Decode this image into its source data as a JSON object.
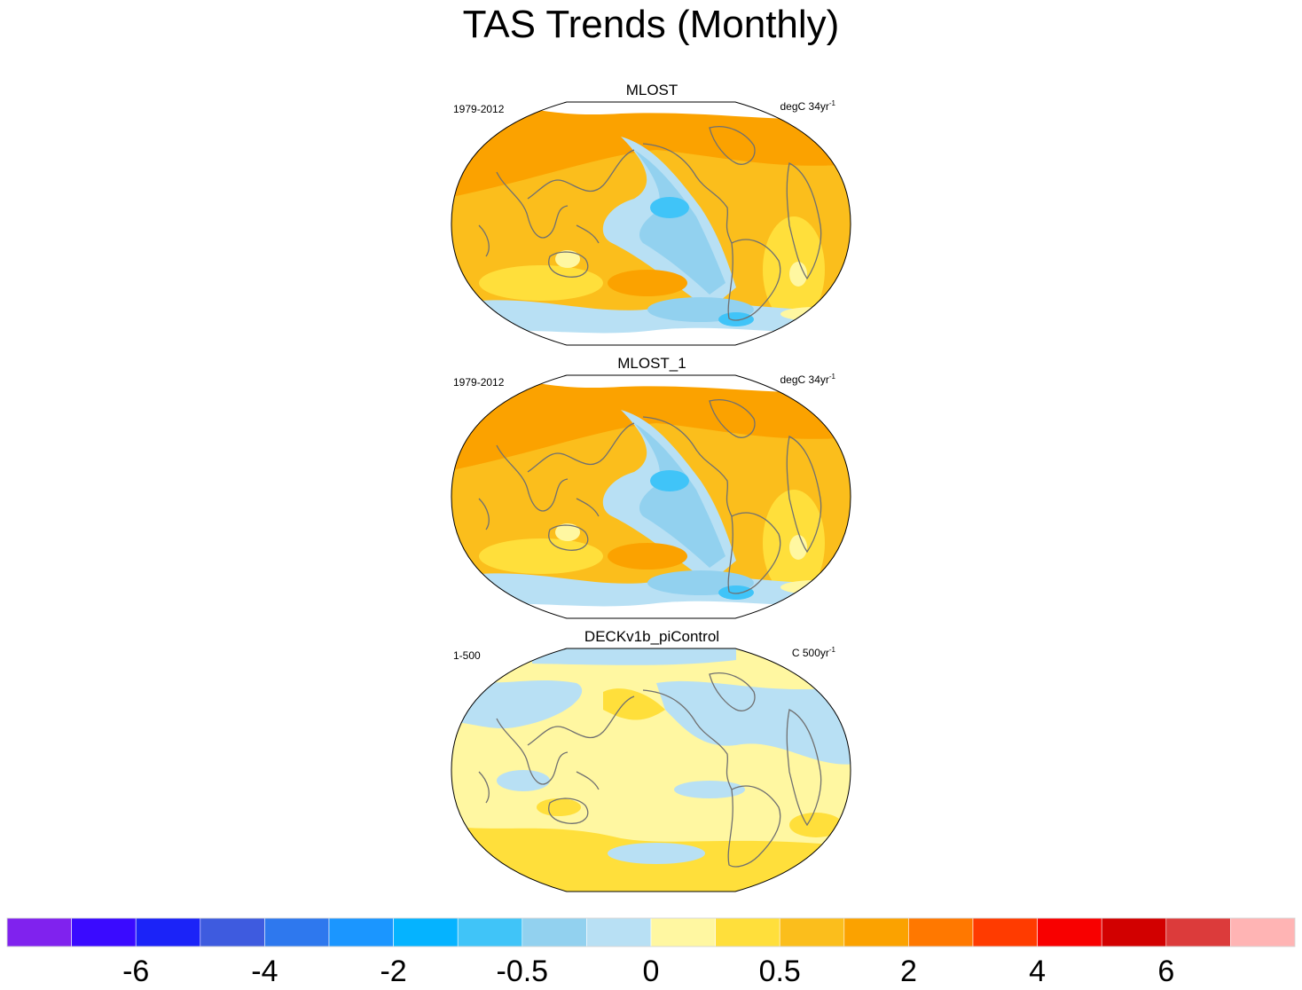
{
  "title": "TAS Trends (Monthly)",
  "panels": [
    {
      "name": "MLOST",
      "period": "1979-2012",
      "units_base": "degC 34yr",
      "units_exp": "-1",
      "pattern": "obs"
    },
    {
      "name": "MLOST_1",
      "period": "1979-2012",
      "units_base": "degC 34yr",
      "units_exp": "-1",
      "pattern": "obs"
    },
    {
      "name": "DECKv1b_piControl",
      "period": "1-500",
      "units_base": "C 500yr",
      "units_exp": "-1",
      "pattern": "control"
    }
  ],
  "chart_data": {
    "type": "heatmap",
    "title": "TAS Trends (Monthly)",
    "projection": "Robinson-like global map",
    "colorbar": {
      "colors": [
        "#8022ee",
        "#3a0aff",
        "#1b23f8",
        "#3e5bdf",
        "#2e78ee",
        "#1b96ff",
        "#05b3ff",
        "#40c4f8",
        "#92d1ef",
        "#b8e0f4",
        "#fff7a1",
        "#ffdf3b",
        "#fbbe1c",
        "#fba200",
        "#ff7800",
        "#ff3b00",
        "#f80000",
        "#d20000",
        "#dc3b3b",
        "#ffb4b4"
      ],
      "tick_labels": [
        "-6",
        "-4",
        "-2",
        "-0.5",
        "0",
        "0.5",
        "2",
        "4",
        "6"
      ],
      "tick_boundaries": [
        2,
        4,
        6,
        8,
        10,
        12,
        14,
        16,
        18
      ]
    }
  }
}
